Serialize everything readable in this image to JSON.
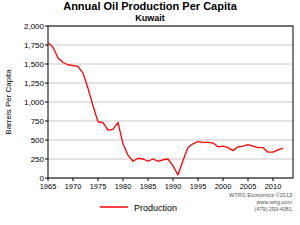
{
  "chart_data": {
    "type": "line",
    "title": "Annual Oil Production Per Capita",
    "subtitle": "Kuwait",
    "y_label": "Barrels Per Capita",
    "annotations": [
      "WTRG Economics ©2013",
      "www.wtrg.com",
      "(479) 293-4081"
    ],
    "x": [
      1965,
      1966,
      1967,
      1968,
      1969,
      1970,
      1971,
      1972,
      1973,
      1974,
      1975,
      1976,
      1977,
      1978,
      1979,
      1980,
      1981,
      1982,
      1983,
      1984,
      1985,
      1986,
      1987,
      1988,
      1989,
      1990,
      1991,
      1992,
      1993,
      1994,
      1995,
      1996,
      1997,
      1998,
      1999,
      2000,
      2001,
      2002,
      2003,
      2004,
      2005,
      2006,
      2007,
      2008,
      2009,
      2010,
      2011,
      2012
    ],
    "series": [
      {
        "name": "Production",
        "color": "#ff0000",
        "values": [
          1780,
          1720,
          1580,
          1520,
          1490,
          1480,
          1470,
          1380,
          1180,
          950,
          740,
          730,
          630,
          640,
          730,
          450,
          300,
          220,
          260,
          250,
          220,
          250,
          220,
          240,
          250,
          160,
          40,
          230,
          400,
          450,
          480,
          470,
          470,
          460,
          410,
          420,
          400,
          360,
          410,
          420,
          440,
          420,
          400,
          400,
          340,
          340,
          370,
          390
        ]
      }
    ],
    "xlim": [
      1965,
      2014
    ],
    "xticks": [
      1965,
      1970,
      1975,
      1980,
      1985,
      1990,
      1995,
      2000,
      2005,
      2010
    ],
    "ylim": [
      0,
      2000
    ],
    "yticks": [
      0,
      250,
      500,
      750,
      {
        "value": 1000,
        "label": "1,000"
      },
      {
        "value": 1250,
        "label": "1,250"
      },
      {
        "value": 1500,
        "label": "1,500"
      },
      {
        "value": 1750,
        "label": "1,750"
      },
      {
        "value": 2000,
        "label": "2,000"
      }
    ],
    "grid": true,
    "legend": "bottom"
  }
}
